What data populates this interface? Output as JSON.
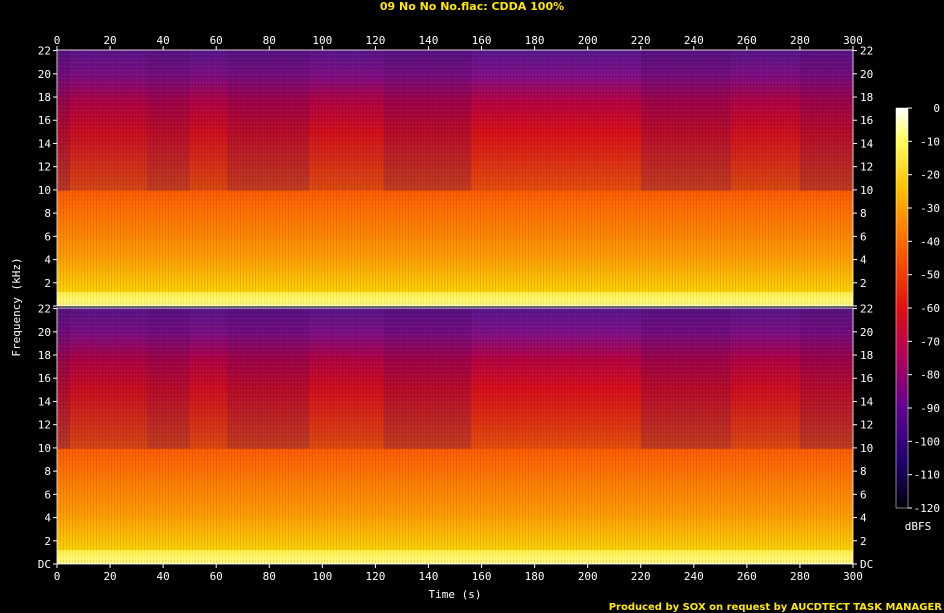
{
  "title": "09 No No No.flac: CDDA 100%",
  "footer": "Produced by SOX on request by AUCDTECT TASK MANAGER",
  "colors": {
    "title": "#ffe800",
    "background": "#000000",
    "axis": "#ffffff"
  },
  "chart_data": {
    "type": "heatmap",
    "title": "09 No No No.flac: CDDA 100%",
    "xlabel": "Time (s)",
    "ylabel": "Frequency (kHz)",
    "xlim": [
      0,
      300
    ],
    "ylim": [
      0,
      22.05
    ],
    "x_ticks": [
      "0",
      "20",
      "40",
      "60",
      "80",
      "100",
      "120",
      "140",
      "160",
      "180",
      "200",
      "220",
      "240",
      "260",
      "280",
      "300"
    ],
    "y_ticks": [
      "DC",
      "2",
      "4",
      "6",
      "8",
      "10",
      "12",
      "14",
      "16",
      "18",
      "20",
      "22"
    ],
    "channels": 2,
    "colorbar": {
      "label": "dBFS",
      "range": [
        -120,
        0
      ],
      "ticks": [
        "0",
        "-10",
        "-20",
        "-30",
        "-40",
        "-50",
        "-60",
        "-70",
        "-80",
        "-90",
        "-100",
        "-110",
        "-120"
      ]
    },
    "sections": [
      {
        "start": 0,
        "end": 5,
        "level": 0.55
      },
      {
        "start": 5,
        "end": 34,
        "level": 0.75
      },
      {
        "start": 34,
        "end": 50,
        "level": 0.62
      },
      {
        "start": 50,
        "end": 64,
        "level": 0.78
      },
      {
        "start": 64,
        "end": 95,
        "level": 0.62
      },
      {
        "start": 95,
        "end": 123,
        "level": 0.8
      },
      {
        "start": 123,
        "end": 156,
        "level": 0.62
      },
      {
        "start": 156,
        "end": 220,
        "level": 0.85
      },
      {
        "start": 220,
        "end": 254,
        "level": 0.62
      },
      {
        "start": 254,
        "end": 280,
        "level": 0.78
      },
      {
        "start": 280,
        "end": 300,
        "level": 0.6
      }
    ]
  }
}
